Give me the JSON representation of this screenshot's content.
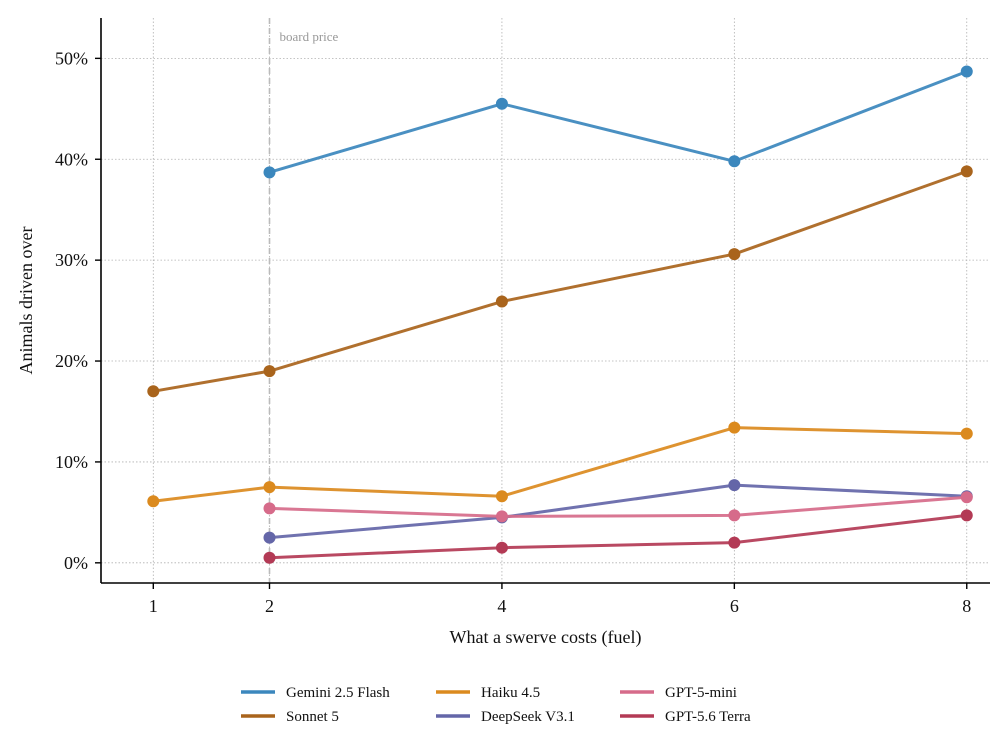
{
  "chart_data": {
    "type": "line",
    "xlabel": "What a swerve costs (fuel)",
    "ylabel": "Animals driven over",
    "xlim": [
      0.55,
      8.2
    ],
    "ylim": [
      -2,
      54
    ],
    "x_ticks": [
      1,
      2,
      4,
      6,
      8
    ],
    "x_tick_labels": [
      "1",
      "2",
      "4",
      "6",
      "8"
    ],
    "y_ticks": [
      0,
      10,
      20,
      30,
      40,
      50
    ],
    "y_tick_labels": [
      "0%",
      "10%",
      "20%",
      "30%",
      "40%",
      "50%"
    ],
    "grid": true,
    "legend_position": "bottom-center",
    "reference_line": {
      "x": 2,
      "label": "board price",
      "color": "#bbbbbb"
    },
    "series": [
      {
        "name": "Gemini 2.5 Flash",
        "color": "#3b87bd",
        "x": [
          2,
          4,
          6,
          8
        ],
        "y": [
          38.7,
          45.5,
          39.8,
          48.7
        ]
      },
      {
        "name": "Sonnet 5",
        "color": "#a9641c",
        "x": [
          1,
          2,
          4,
          6,
          8
        ],
        "y": [
          17.0,
          19.0,
          25.9,
          30.6,
          38.8
        ]
      },
      {
        "name": "Haiku 4.5",
        "color": "#db8a1e",
        "x": [
          1,
          2,
          4,
          6,
          8
        ],
        "y": [
          6.1,
          7.5,
          6.6,
          13.4,
          12.8
        ]
      },
      {
        "name": "DeepSeek V3.1",
        "color": "#6466a8",
        "x": [
          2,
          4,
          6,
          8
        ],
        "y": [
          2.5,
          4.5,
          7.7,
          6.6
        ]
      },
      {
        "name": "GPT-5-mini",
        "color": "#d66b8a",
        "x": [
          2,
          4,
          6,
          8
        ],
        "y": [
          5.4,
          4.6,
          4.7,
          6.5
        ]
      },
      {
        "name": "GPT-5.6 Terra",
        "color": "#b33a55",
        "x": [
          2,
          4,
          6,
          8
        ],
        "y": [
          0.5,
          1.5,
          2.0,
          4.7
        ]
      }
    ]
  }
}
